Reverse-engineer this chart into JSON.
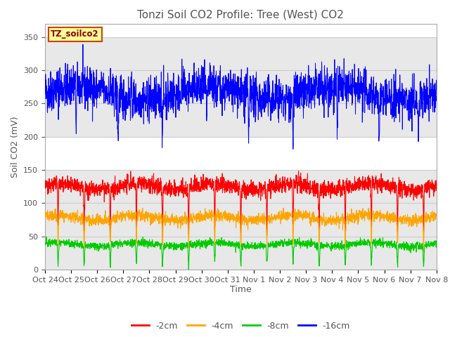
{
  "title": "Tonzi Soil CO2 Profile: Tree (West) CO2",
  "xlabel": "Time",
  "ylabel": "Soil CO2 (mV)",
  "ylim": [
    0,
    370
  ],
  "yticks": [
    0,
    50,
    100,
    150,
    200,
    250,
    300,
    350
  ],
  "xtick_labels": [
    "Oct 24",
    "Oct 25",
    "Oct 26",
    "Oct 27",
    "Oct 28",
    "Oct 29",
    "Oct 30",
    "Oct 31",
    "Nov 1",
    "Nov 2",
    "Nov 3",
    "Nov 4",
    "Nov 5",
    "Nov 6",
    "Nov 7",
    "Nov 8"
  ],
  "n_days": 15,
  "n_points": 2160,
  "legend_label": "TZ_soilco2",
  "series_labels": [
    "-2cm",
    "-4cm",
    "-8cm",
    "-16cm"
  ],
  "series_colors": [
    "#ff0000",
    "#ffa500",
    "#00cc00",
    "#0000ff"
  ],
  "tz_color": "#0000ff",
  "background_color": "#ffffff",
  "grid_color": "#cccccc",
  "band_color": "#e8e8e8",
  "title_fontsize": 11,
  "axis_fontsize": 9,
  "tick_fontsize": 8
}
